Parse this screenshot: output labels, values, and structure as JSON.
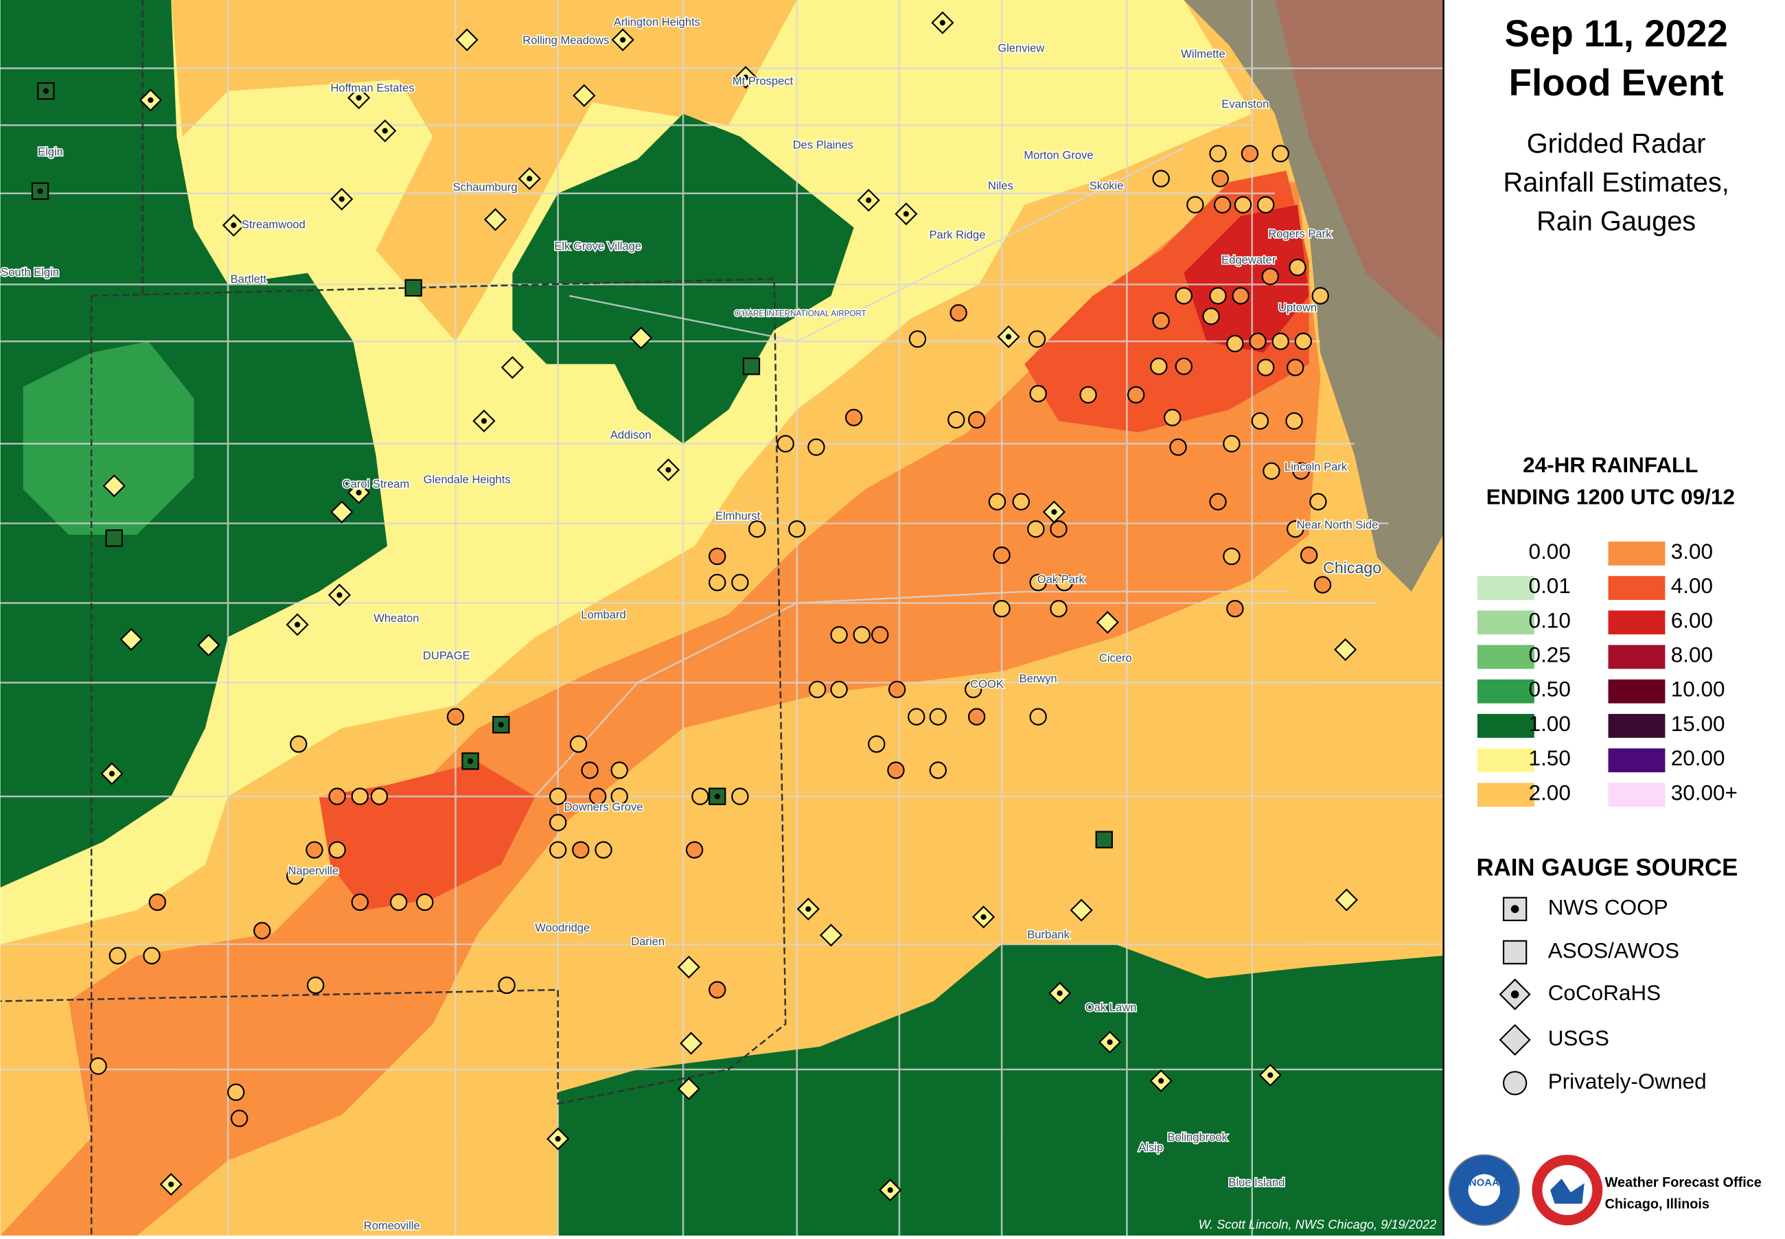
{
  "title": [
    "Sep 11, 2022",
    "Flood Event"
  ],
  "subtitle": [
    "Gridded Radar",
    "Rainfall Estimates,",
    "Rain Gauges"
  ],
  "legend": {
    "title": [
      "24-HR RAINFALL",
      "ENDING 1200 UTC 09/12"
    ],
    "bins": [
      {
        "label": "0.00",
        "color": "#ffffff"
      },
      {
        "label": "0.01",
        "color": "#c7e9c0"
      },
      {
        "label": "0.10",
        "color": "#a1d99b"
      },
      {
        "label": "0.25",
        "color": "#6dc06d"
      },
      {
        "label": "0.50",
        "color": "#2f9e4a"
      },
      {
        "label": "1.00",
        "color": "#0b6b2b"
      },
      {
        "label": "1.50",
        "color": "#fef48c"
      },
      {
        "label": "2.00",
        "color": "#fdc55a"
      },
      {
        "label": "3.00",
        "color": "#f98f3f"
      },
      {
        "label": "4.00",
        "color": "#f2552a"
      },
      {
        "label": "6.00",
        "color": "#d4201f"
      },
      {
        "label": "8.00",
        "color": "#a50f2a"
      },
      {
        "label": "10.00",
        "color": "#67001f"
      },
      {
        "label": "15.00",
        "color": "#3b0a33"
      },
      {
        "label": "20.00",
        "color": "#4b0a7a"
      },
      {
        "label": "30.00+",
        "color": "#fcd9f7"
      }
    ]
  },
  "gauge_source": {
    "title": "RAIN GAUGE SOURCE",
    "items": [
      "NWS COOP",
      "ASOS/AWOS",
      "CoCoRaHS",
      "USGS",
      "Privately-Owned"
    ]
  },
  "places": [
    "Rolling Meadows",
    "Arlington Heights",
    "Glenview",
    "Wilmette",
    "Hoffman Estates",
    "Mt Prospect",
    "Evanston",
    "Elgin",
    "Des Plaines",
    "Schaumburg",
    "Morton Grove",
    "Niles",
    "Skokie",
    "Streamwood",
    "Park Ridge",
    "Rogers Park",
    "Elk Grove Village",
    "Edgewater",
    "Bartlett",
    "South Elgin",
    "O'HARE INTERNATIONAL AIRPORT",
    "Uptown",
    "Addison",
    "Lincoln Park",
    "Carol Stream",
    "Glendale Heights",
    "Elmhurst",
    "Near North Side",
    "Chicago",
    "Oak Park",
    "Wheaton",
    "Lombard",
    "DUPAGE",
    "Cicero",
    "COOK",
    "Berwyn",
    "Downers Grove",
    "Naperville",
    "Woodridge",
    "Darien",
    "Burbank",
    "Oak Lawn",
    "Bolingbrook",
    "Alsip",
    "Blue Island",
    "Romeoville"
  ],
  "credit": "W. Scott Lincoln, NWS Chicago, 9/19/2022",
  "office": [
    "Weather Forecast Office",
    "Chicago, Illinois"
  ],
  "logos": [
    "NOAA"
  ]
}
